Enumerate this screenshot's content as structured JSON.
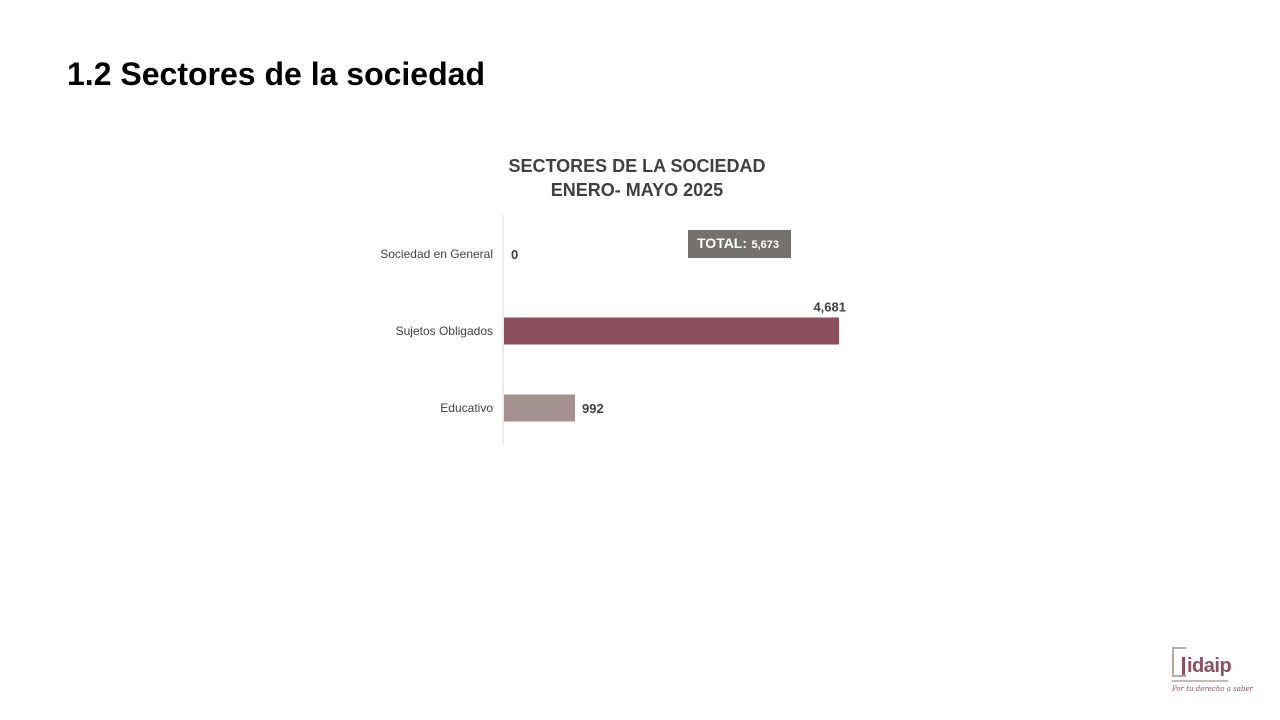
{
  "slide": {
    "title": "1.2 Sectores de la sociedad"
  },
  "chart_data": {
    "type": "bar",
    "orientation": "horizontal",
    "title_lines": [
      "SECTORES DE LA SOCIEDAD",
      "ENERO- MAYO 2025"
    ],
    "categories": [
      "Sociedad en General",
      "Sujetos Obligados",
      "Educativo"
    ],
    "values": [
      0,
      4681,
      992
    ],
    "value_labels": [
      "0",
      "4,681",
      "992"
    ],
    "colors": [
      "#8c4f62",
      "#8c4f62",
      "#a69192"
    ],
    "xlim": [
      0,
      5000
    ],
    "grid": false,
    "legend": "none",
    "total": {
      "label": "TOTAL:",
      "value": "5,673",
      "color": "#767171"
    }
  },
  "logo": {
    "name": "idaip",
    "tagline": "Por tu derecho a saber"
  }
}
